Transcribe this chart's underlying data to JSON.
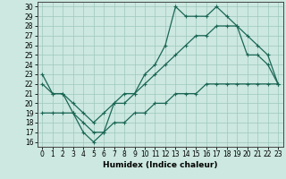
{
  "xlabel": "Humidex (Indice chaleur)",
  "bg_color": "#cce8e0",
  "grid_color": "#9ec8bb",
  "line_color": "#1a6655",
  "xlim_min": -0.5,
  "xlim_max": 23.5,
  "ylim_min": 15.5,
  "ylim_max": 30.5,
  "xticks": [
    0,
    1,
    2,
    3,
    4,
    5,
    6,
    7,
    8,
    9,
    10,
    11,
    12,
    13,
    14,
    15,
    16,
    17,
    18,
    19,
    20,
    21,
    22,
    23
  ],
  "yticks": [
    16,
    17,
    18,
    19,
    20,
    21,
    22,
    23,
    24,
    25,
    26,
    27,
    28,
    29,
    30
  ],
  "line1_x": [
    0,
    1,
    2,
    3,
    4,
    5,
    6,
    7,
    8,
    9,
    10,
    11,
    12,
    13,
    14,
    15,
    16,
    17,
    18,
    19,
    20,
    21,
    22,
    23
  ],
  "line1_y": [
    23,
    21,
    21,
    19,
    17,
    16,
    17,
    20,
    20,
    21,
    23,
    24,
    26,
    30,
    29,
    29,
    29,
    30,
    29,
    28,
    25,
    25,
    24,
    22
  ],
  "line2_x": [
    0,
    1,
    2,
    3,
    4,
    5,
    6,
    7,
    8,
    9,
    10,
    11,
    12,
    13,
    14,
    15,
    16,
    17,
    18,
    19,
    20,
    21,
    22,
    23
  ],
  "line2_y": [
    22,
    21,
    21,
    20,
    19,
    18,
    19,
    20,
    21,
    21,
    22,
    23,
    24,
    25,
    26,
    27,
    27,
    28,
    28,
    28,
    27,
    26,
    25,
    22
  ],
  "line3_x": [
    0,
    1,
    2,
    3,
    4,
    5,
    6,
    7,
    8,
    9,
    10,
    11,
    12,
    13,
    14,
    15,
    16,
    17,
    18,
    19,
    20,
    21,
    22,
    23
  ],
  "line3_y": [
    19,
    19,
    19,
    19,
    18,
    17,
    17,
    18,
    18,
    19,
    19,
    20,
    20,
    21,
    21,
    21,
    22,
    22,
    22,
    22,
    22,
    22,
    22,
    22
  ],
  "tick_fontsize": 5.5,
  "xlabel_fontsize": 6.5
}
